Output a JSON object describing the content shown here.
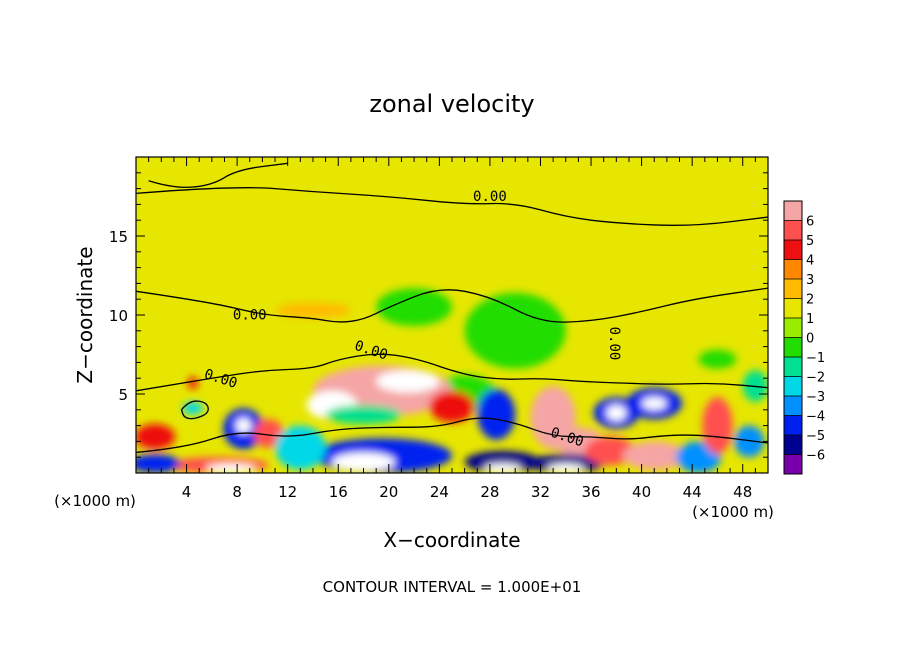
{
  "chart_data": {
    "type": "heatmap",
    "title": "zonal velocity",
    "xlabel": "X−coordinate",
    "ylabel": "Z−coordinate",
    "x_unit": "(×1000 m)",
    "z_unit": "(×1000 m)",
    "footer": "CONTOUR INTERVAL = 1.000E+01",
    "xlim": [
      0,
      50
    ],
    "ylim": [
      0,
      20
    ],
    "x_ticks": [
      "4",
      "8",
      "12",
      "16",
      "20",
      "24",
      "28",
      "32",
      "36",
      "40",
      "44",
      "48"
    ],
    "y_ticks": [
      "5",
      "10",
      "15"
    ],
    "x_tick_values": [
      4,
      8,
      12,
      16,
      20,
      24,
      28,
      32,
      36,
      40,
      44,
      48
    ],
    "y_tick_values": [
      5,
      10,
      15
    ],
    "contour_labels": [
      {
        "text": "0.00",
        "x": 28,
        "z": 17.2
      },
      {
        "text": "0.00",
        "x": 9,
        "z": 9.7
      },
      {
        "text": "0.00",
        "x": 18.5,
        "z": 7.5
      },
      {
        "text": "0.00",
        "x": 6.6,
        "z": 5.7
      },
      {
        "text": "0.00",
        "x": 34,
        "z": 2.0
      },
      {
        "text": "0.00",
        "x": 37.5,
        "z": 8.2
      }
    ],
    "colorbar": {
      "levels": [
        "6",
        "5",
        "4",
        "3",
        "2",
        "1",
        "0",
        "−1",
        "−2",
        "−3",
        "−4",
        "−5",
        "−6"
      ],
      "colors": [
        "#f5a5a5",
        "#ff5050",
        "#ee1010",
        "#ff8800",
        "#ffbb00",
        "#e6e600",
        "#99ee00",
        "#22dd00",
        "#00e090",
        "#00d8e8",
        "#0090ff",
        "#0020f0",
        "#000090",
        "#7700aa"
      ]
    },
    "blobs": [
      {
        "x": 20,
        "z": 17.5,
        "rx": 9,
        "rz": 0.8,
        "v": 0.8
      },
      {
        "x": 14,
        "z": 10.3,
        "rx": 3,
        "rz": 0.5,
        "v": 2
      },
      {
        "x": 22,
        "z": 10.5,
        "rx": 3,
        "rz": 1.2,
        "v": -1.8
      },
      {
        "x": 30,
        "z": 9,
        "rx": 4,
        "rz": 2.4,
        "v": -1.6
      },
      {
        "x": 26,
        "z": 5,
        "rx": 2.5,
        "rz": 1.2,
        "v": -1.5
      },
      {
        "x": 19.5,
        "z": 5.2,
        "rx": 5.5,
        "rz": 1.6,
        "v": 6.3
      },
      {
        "x": 15.5,
        "z": 4.3,
        "rx": 2,
        "rz": 0.9,
        "v": 7
      },
      {
        "x": 21.5,
        "z": 5.8,
        "rx": 2.5,
        "rz": 0.7,
        "v": 6.8
      },
      {
        "x": 25,
        "z": 4.2,
        "rx": 1.8,
        "rz": 1.0,
        "v": 4
      },
      {
        "x": 18,
        "z": 3.7,
        "rx": 3,
        "rz": 0.6,
        "v": -2.5
      },
      {
        "x": 19.5,
        "z": 1.1,
        "rx": 5.5,
        "rz": 1.1,
        "v": -5.5
      },
      {
        "x": 18,
        "z": 0.7,
        "rx": 2.5,
        "rz": 0.6,
        "v": -8
      },
      {
        "x": 6.5,
        "z": 0.5,
        "rx": 4,
        "rz": 0.5,
        "v": 5
      },
      {
        "x": 7.5,
        "z": 0.3,
        "rx": 2,
        "rz": 0.3,
        "v": 8
      },
      {
        "x": 1.5,
        "z": 0.6,
        "rx": 2,
        "rz": 0.6,
        "v": -5
      },
      {
        "x": 1.5,
        "z": 2.3,
        "rx": 1.6,
        "rz": 0.8,
        "v": 3.5
      },
      {
        "x": 4.5,
        "z": 4.1,
        "rx": 0.8,
        "rz": 0.4,
        "v": -3.5
      },
      {
        "x": 4.5,
        "z": 5.7,
        "rx": 0.4,
        "rz": 0.4,
        "v": 4
      },
      {
        "x": 8.5,
        "z": 2.8,
        "rx": 1.6,
        "rz": 1.3,
        "v": -5
      },
      {
        "x": 8.5,
        "z": 3.0,
        "rx": 0.6,
        "rz": 0.5,
        "v": -8
      },
      {
        "x": 10.5,
        "z": 2.5,
        "rx": 1.2,
        "rz": 0.9,
        "v": 4.5
      },
      {
        "x": 13,
        "z": 1.6,
        "rx": 2,
        "rz": 1.4,
        "v": -3
      },
      {
        "x": 28.5,
        "z": 3.7,
        "rx": 1.5,
        "rz": 1.6,
        "v": -5
      },
      {
        "x": 29,
        "z": 0.7,
        "rx": 3,
        "rz": 0.7,
        "v": -6
      },
      {
        "x": 29,
        "z": 0.3,
        "rx": 1.5,
        "rz": 0.3,
        "v": -8
      },
      {
        "x": 33,
        "z": 3.5,
        "rx": 1.8,
        "rz": 2.0,
        "v": 5.5
      },
      {
        "x": 35,
        "z": 2.0,
        "rx": 2.0,
        "rz": 0.9,
        "v": 6
      },
      {
        "x": 34,
        "z": 0.6,
        "rx": 3,
        "rz": 0.6,
        "v": -6
      },
      {
        "x": 34,
        "z": 0.3,
        "rx": 1.5,
        "rz": 0.3,
        "v": -8
      },
      {
        "x": 38,
        "z": 3.8,
        "rx": 1.8,
        "rz": 1.0,
        "v": -5
      },
      {
        "x": 38,
        "z": 3.8,
        "rx": 0.8,
        "rz": 0.5,
        "v": -8
      },
      {
        "x": 41,
        "z": 4.4,
        "rx": 2.2,
        "rz": 1.0,
        "v": -5.5
      },
      {
        "x": 41,
        "z": 4.4,
        "rx": 1.0,
        "rz": 0.4,
        "v": -8
      },
      {
        "x": 37.5,
        "z": 1.4,
        "rx": 2.0,
        "rz": 0.9,
        "v": 5
      },
      {
        "x": 41,
        "z": 1.1,
        "rx": 2.5,
        "rz": 0.9,
        "v": 6
      },
      {
        "x": 44.5,
        "z": 1.0,
        "rx": 1.8,
        "rz": 1.0,
        "v": -4
      },
      {
        "x": 46,
        "z": 3.0,
        "rx": 1.2,
        "rz": 1.8,
        "v": 5
      },
      {
        "x": 48.5,
        "z": 2.0,
        "rx": 1.2,
        "rz": 1.0,
        "v": -4
      },
      {
        "x": 46,
        "z": 7.2,
        "rx": 1.5,
        "rz": 0.6,
        "v": -1.5
      },
      {
        "x": 49,
        "z": 5.5,
        "rx": 1,
        "rz": 1,
        "v": -2
      }
    ],
    "contour_lines": [
      [
        [
          0,
          17.7
        ],
        [
          8,
          18.2
        ],
        [
          14,
          17.8
        ],
        [
          20,
          17.5
        ],
        [
          26,
          17.0
        ],
        [
          30,
          17.1
        ],
        [
          34,
          16.2
        ],
        [
          38,
          15.8
        ],
        [
          44,
          15.6
        ],
        [
          50,
          16.2
        ]
      ],
      [
        [
          0,
          11.5
        ],
        [
          6,
          10.8
        ],
        [
          10,
          10.0
        ],
        [
          14,
          9.8
        ],
        [
          16,
          9.5
        ],
        [
          18,
          9.7
        ],
        [
          20,
          10.5
        ],
        [
          24,
          11.8
        ],
        [
          28,
          11.2
        ],
        [
          32,
          9.5
        ],
        [
          36,
          9.6
        ],
        [
          40,
          10.2
        ],
        [
          44,
          11.0
        ],
        [
          50,
          11.7
        ]
      ],
      [
        [
          0,
          5.2
        ],
        [
          3,
          5.6
        ],
        [
          6,
          6.0
        ],
        [
          10,
          6.5
        ],
        [
          14,
          6.6
        ],
        [
          16,
          7.2
        ],
        [
          19,
          7.6
        ],
        [
          22,
          7.3
        ],
        [
          26,
          6.2
        ],
        [
          29,
          5.9
        ],
        [
          32,
          6.0
        ],
        [
          35,
          5.8
        ],
        [
          38,
          5.7
        ],
        [
          42,
          5.6
        ],
        [
          46,
          5.7
        ],
        [
          50,
          5.4
        ]
      ],
      [
        [
          0,
          1.3
        ],
        [
          4,
          1.6
        ],
        [
          8,
          2.7
        ],
        [
          12,
          2.2
        ],
        [
          16,
          2.8
        ],
        [
          20,
          2.9
        ],
        [
          24,
          2.9
        ],
        [
          27,
          3.6
        ],
        [
          30,
          3.2
        ],
        [
          33,
          2.3
        ],
        [
          36,
          2.3
        ],
        [
          39,
          2.1
        ],
        [
          42,
          2.4
        ],
        [
          45,
          2.4
        ],
        [
          50,
          1.9
        ]
      ],
      [
        [
          3.6,
          4.0
        ],
        [
          4.2,
          4.6
        ],
        [
          5.6,
          4.5
        ],
        [
          5.8,
          3.8
        ],
        [
          4.6,
          3.4
        ],
        [
          3.8,
          3.5
        ],
        [
          3.6,
          4.0
        ]
      ],
      [
        [
          1,
          18.5
        ],
        [
          3,
          18.0
        ],
        [
          6,
          18.2
        ],
        [
          8,
          19.2
        ],
        [
          12,
          19.6
        ]
      ]
    ]
  }
}
